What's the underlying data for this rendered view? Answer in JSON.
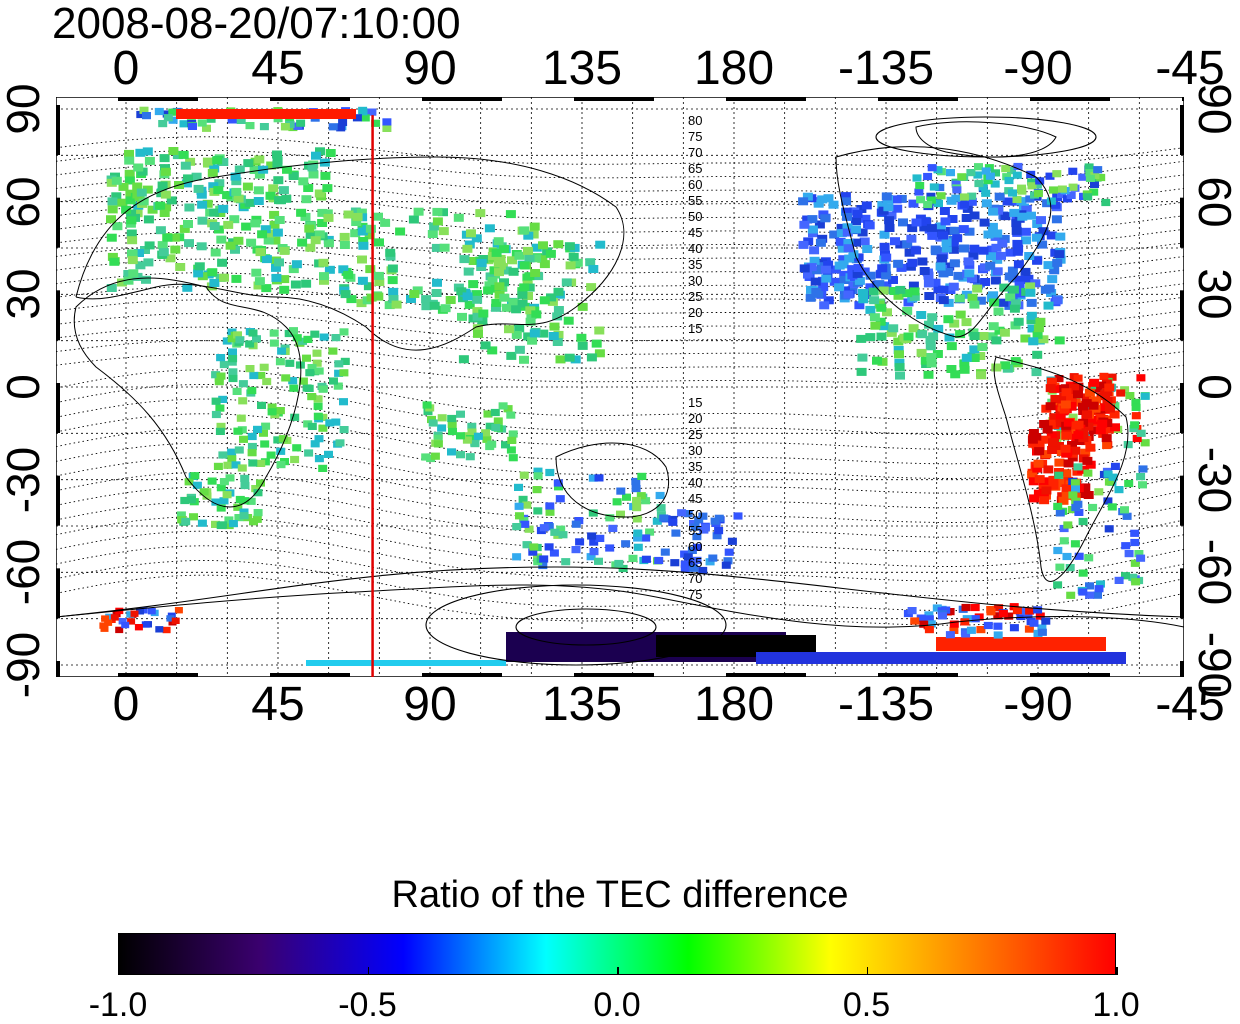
{
  "title": "2008-08-20/07:10:00",
  "map": {
    "lon_ticks": [
      "0",
      "45",
      "90",
      "135",
      "180",
      "-135",
      "-90",
      "-45"
    ],
    "lat_ticks": [
      "90",
      "60",
      "30",
      "0",
      "-30",
      "-60",
      "-90"
    ],
    "meridian_line_lon": 73,
    "contour_labels_north": [
      "80",
      "75",
      "70",
      "65",
      "60",
      "55",
      "50",
      "45",
      "40",
      "35",
      "30",
      "25",
      "20",
      "15"
    ],
    "contour_labels_south": [
      "15",
      "20",
      "25",
      "30",
      "35",
      "40",
      "45",
      "50",
      "55",
      "60",
      "65",
      "70",
      "75"
    ]
  },
  "colorbar": {
    "title": "Ratio of the TEC difference",
    "ticks": [
      "-1.0",
      "-0.5",
      "0.0",
      "0.5",
      "1.0"
    ],
    "range": [
      -1.0,
      1.0
    ],
    "colors": [
      "#000000",
      "#3b0070",
      "#0000ff",
      "#00ffff",
      "#00ff00",
      "#ffff00",
      "#ff7f00",
      "#ff0000"
    ]
  }
}
